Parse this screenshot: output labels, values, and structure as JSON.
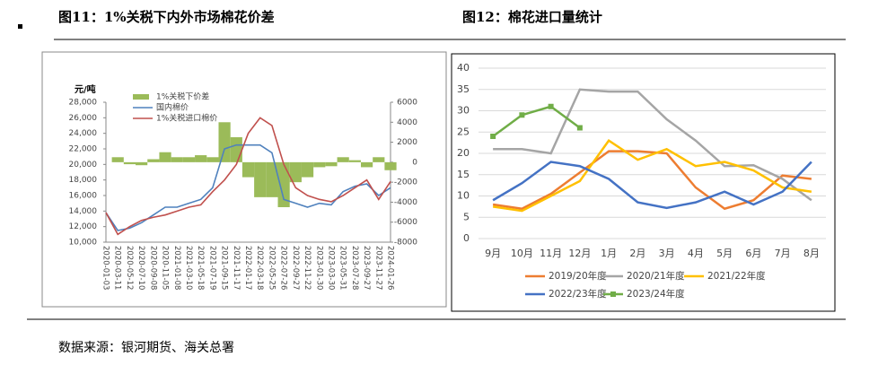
{
  "chart_data": [
    {
      "type": "line",
      "title": "图11：1%关税下内外市场棉花价差",
      "y_label": "元/吨",
      "categories": [
        "2020-01-03",
        "2020-03-11",
        "2020-05-12",
        "2020-07-10",
        "2020-09-08",
        "2020-11-05",
        "2021-01-08",
        "2021-03-10",
        "2021-05-18",
        "2021-07-19",
        "2021-09-15",
        "2021-11-17",
        "2022-01-17",
        "2022-03-18",
        "2022-05-25",
        "2022-07-26",
        "2022-09-27",
        "2022-11-22",
        "2023-01-30",
        "2023-03-30",
        "2023-05-31",
        "2023-07-28",
        "2023-09-27",
        "2023-11-27",
        "2024-01-26"
      ],
      "series": [
        {
          "name": "1%关税下价差",
          "color": "#9bbb59",
          "kind": "bar",
          "axis": "y2",
          "values": [
            0,
            500,
            -200,
            -300,
            300,
            1000,
            500,
            500,
            700,
            500,
            4000,
            2500,
            -1500,
            -3500,
            -3500,
            -4500,
            -2000,
            -1500,
            -500,
            -400,
            500,
            200,
            -500,
            500,
            -800
          ]
        },
        {
          "name": "国内棉价",
          "color": "#4f81bd",
          "values": [
            13800,
            11500,
            11800,
            12500,
            13500,
            14500,
            14500,
            15000,
            15500,
            17000,
            22000,
            22500,
            22500,
            22500,
            21500,
            15500,
            15000,
            14500,
            15000,
            14800,
            16500,
            17200,
            17500,
            16000,
            17000
          ]
        },
        {
          "name": "1%关税进口棉价",
          "color": "#c0504d",
          "values": [
            13800,
            11000,
            12000,
            12800,
            13200,
            13500,
            14000,
            14500,
            14800,
            16500,
            18000,
            20000,
            24000,
            26000,
            25000,
            20000,
            17000,
            16000,
            15500,
            15200,
            16000,
            17000,
            18000,
            15500,
            17800
          ]
        }
      ],
      "ylim": [
        10000,
        28000
      ],
      "yticks": [
        {
          "value": 10000,
          "label": "10,000"
        },
        {
          "value": 12000,
          "label": "12,000"
        },
        {
          "value": 14000,
          "label": "14,000"
        },
        {
          "value": 16000,
          "label": "16,000"
        },
        {
          "value": 18000,
          "label": "18,000"
        },
        {
          "value": 20000,
          "label": "20,000"
        },
        {
          "value": 22000,
          "label": "22,000"
        },
        {
          "value": 24000,
          "label": "24,000"
        },
        {
          "value": 26000,
          "label": "26,000"
        },
        {
          "value": 28000,
          "label": "28,000"
        }
      ],
      "y2lim": [
        -8000,
        6000
      ],
      "y2ticks": [
        -8000,
        -6000,
        -4000,
        -2000,
        0,
        2000,
        4000,
        6000
      ]
    },
    {
      "type": "line",
      "title": "图12：棉花进口量统计",
      "grid": true,
      "categories": [
        "9月",
        "10月",
        "11月",
        "12月",
        "1月",
        "2月",
        "3月",
        "4月",
        "5月",
        "6月",
        "7月",
        "8月"
      ],
      "series": [
        {
          "name": "2019/20年度",
          "color": "#ed7d31",
          "values": [
            8,
            7,
            10.5,
            15.5,
            20.5,
            20.5,
            20,
            12,
            7,
            9,
            14.8,
            14
          ]
        },
        {
          "name": "2020/21年度",
          "color": "#a5a5a5",
          "values": [
            21,
            21,
            20,
            35,
            34.5,
            34.5,
            28,
            23,
            17,
            17.2,
            14,
            9
          ]
        },
        {
          "name": "2021/22年度",
          "color": "#ffc000",
          "values": [
            7.5,
            6.5,
            10,
            13.5,
            23,
            18.5,
            21,
            17,
            18,
            16,
            12,
            11
          ]
        },
        {
          "name": "2022/23年度",
          "color": "#4472c4",
          "values": [
            9,
            13,
            18,
            17,
            14,
            8.5,
            7.2,
            8.5,
            11,
            8,
            11,
            18
          ]
        },
        {
          "name": "2023/24年度",
          "color": "#70ad47",
          "marker": "square",
          "values": [
            24,
            29,
            31,
            26,
            null,
            null,
            null,
            null,
            null,
            null,
            null,
            null
          ]
        }
      ],
      "ylim": [
        0,
        40
      ],
      "yticks": [
        0,
        5,
        10,
        15,
        20,
        25,
        30,
        35,
        40
      ]
    }
  ],
  "source": "数据来源：银河期货、海关总署"
}
